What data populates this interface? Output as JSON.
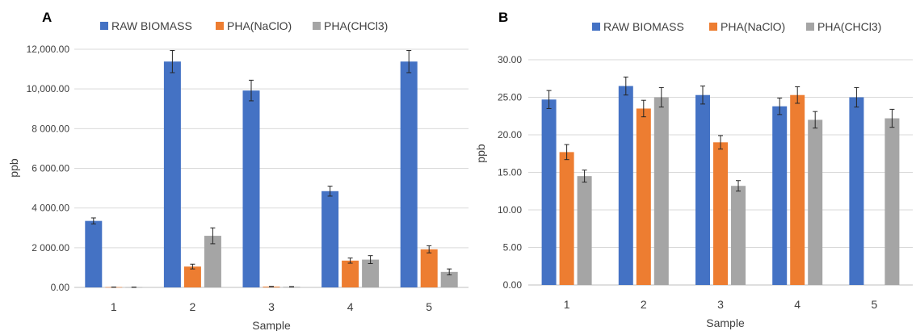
{
  "chart_data": [
    {
      "type": "bar",
      "panel_label": "A",
      "xlabel": "Sample",
      "ylabel": "ppb",
      "categories": [
        "1",
        "2",
        "3",
        "4",
        "5"
      ],
      "ylim": [
        0,
        12000
      ],
      "yticks": [
        0,
        2000,
        4000,
        6000,
        8000,
        10000,
        12000
      ],
      "ytick_labels": [
        "0.00",
        "2 000.00",
        "4 000.00",
        "6 000.00",
        "8 000.00",
        "10,000.00",
        "12,000.00"
      ],
      "grid": true,
      "legend_position": "top",
      "series": [
        {
          "name": "RAW BIOMASS",
          "color": "#4472c4",
          "values": [
            3350,
            11380,
            9920,
            4850,
            11380
          ],
          "errors": [
            150,
            560,
            520,
            250,
            560
          ]
        },
        {
          "name": "PHA(NaClO)",
          "color": "#ed7d31",
          "values": [
            15,
            1050,
            40,
            1350,
            1920
          ],
          "errors": [
            5,
            120,
            10,
            130,
            180
          ]
        },
        {
          "name": "PHA(CHCl3)",
          "color": "#a5a5a5",
          "values": [
            10,
            2600,
            30,
            1400,
            780
          ],
          "errors": [
            5,
            400,
            10,
            200,
            150
          ]
        }
      ]
    },
    {
      "type": "bar",
      "panel_label": "B",
      "xlabel": "Sample",
      "ylabel": "ppb",
      "categories": [
        "1",
        "2",
        "3",
        "4",
        "5"
      ],
      "ylim": [
        0,
        30
      ],
      "yticks": [
        0,
        5,
        10,
        15,
        20,
        25,
        30
      ],
      "ytick_labels": [
        "0.00",
        "5.00",
        "10.00",
        "15.00",
        "20.00",
        "25.00",
        "30.00"
      ],
      "grid": true,
      "legend_position": "top",
      "series": [
        {
          "name": "RAW BIOMASS",
          "color": "#4472c4",
          "values": [
            24.7,
            26.5,
            25.3,
            23.8,
            25.0
          ],
          "errors": [
            1.2,
            1.2,
            1.2,
            1.1,
            1.3
          ]
        },
        {
          "name": "PHA(NaClO)",
          "color": "#ed7d31",
          "values": [
            17.7,
            23.5,
            19.0,
            25.3,
            null
          ],
          "errors": [
            1.0,
            1.1,
            0.9,
            1.1,
            null
          ]
        },
        {
          "name": "PHA(CHCl3)",
          "color": "#a5a5a5",
          "values": [
            14.5,
            25.0,
            13.2,
            22.0,
            22.2
          ],
          "errors": [
            0.8,
            1.3,
            0.7,
            1.1,
            1.2
          ]
        }
      ]
    }
  ]
}
